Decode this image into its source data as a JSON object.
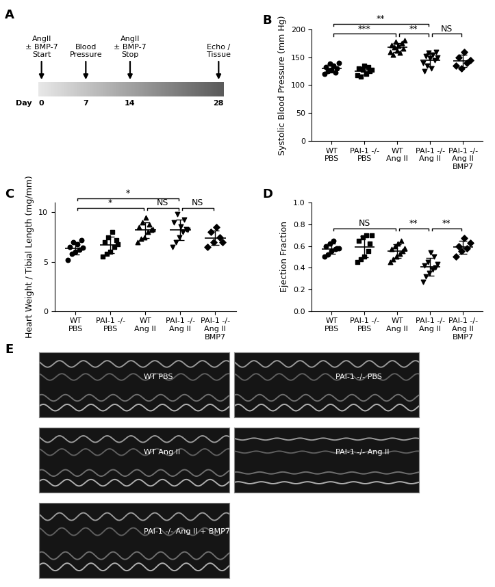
{
  "timeline": {
    "panel": "A",
    "axis_label": "Day",
    "events": [
      {
        "day": 0,
        "text": "AngII\n± BMP-7\nStart"
      },
      {
        "day": 7,
        "text": "Blood\nPressure"
      },
      {
        "day": 14,
        "text": "AngII\n± BMP-7\nStop"
      },
      {
        "day": 28,
        "text": "Echo /\nTissue"
      }
    ]
  },
  "chart_data": [
    {
      "panel": "B",
      "type": "scatter",
      "color": "black",
      "y_label": "Systolic Blood Pressure (mm Hg)",
      "categories": [
        "WT\nPBS",
        "PAI-1 -/-\nPBS",
        "WT\nAng II",
        "PAI-1 -/-\nAng II",
        "PAI-1 -/-\nAng II\nBMP7"
      ],
      "groups": [
        {
          "marker": "circle",
          "values": [
            120,
            132,
            125,
            138,
            128,
            135,
            122,
            130,
            140
          ]
        },
        {
          "marker": "square",
          "values": [
            118,
            130,
            115,
            127,
            135,
            120,
            132,
            125,
            128
          ]
        },
        {
          "marker": "triangle_up",
          "values": [
            160,
            172,
            155,
            168,
            178,
            162,
            170,
            158,
            175,
            165,
            180
          ]
        },
        {
          "marker": "triangle_down",
          "values": [
            140,
            125,
            152,
            135,
            158,
            148,
            130,
            155,
            145,
            160,
            150
          ]
        },
        {
          "marker": "diamond",
          "values": [
            135,
            150,
            130,
            160,
            140,
            145
          ]
        }
      ],
      "ylim": [
        0,
        200
      ],
      "yticks": [
        0,
        50,
        100,
        150,
        200
      ],
      "significance": [
        {
          "from": 0,
          "to": 3,
          "text": "**"
        },
        {
          "from": 0,
          "to": 2,
          "text": "***"
        },
        {
          "from": 2,
          "to": 3,
          "text": "**"
        },
        {
          "from": 3,
          "to": 4,
          "text": "NS"
        }
      ]
    },
    {
      "panel": "C",
      "type": "scatter",
      "color": "black",
      "y_label": "Heart Weight / Tibial Length (mg/mm)",
      "categories": [
        "WT\nPBS",
        "PAI-1 -/-\nPBS",
        "WT\nAng II",
        "PAI-1 -/-\nAng II",
        "PAI-1 -/-\nAng II\nBMP7"
      ],
      "groups": [
        {
          "marker": "circle",
          "values": [
            5.2,
            6.5,
            5.8,
            7.0,
            6.0,
            6.8,
            6.2,
            7.2,
            6.4
          ]
        },
        {
          "marker": "square",
          "values": [
            5.5,
            7.0,
            5.8,
            7.5,
            6.0,
            8.0,
            6.5,
            7.2,
            6.8
          ]
        },
        {
          "marker": "triangle_up",
          "values": [
            7.0,
            8.5,
            7.3,
            9.0,
            7.5,
            9.5,
            8.0,
            8.8,
            8.2,
            8.3
          ]
        },
        {
          "marker": "triangle_down",
          "values": [
            6.5,
            9.0,
            7.0,
            9.8,
            7.5,
            8.6,
            8.0,
            9.3,
            8.3,
            8.2
          ]
        },
        {
          "marker": "diamond",
          "values": [
            6.5,
            8.0,
            7.0,
            8.5,
            7.5,
            7.0
          ]
        }
      ],
      "ylim": [
        0,
        11
      ],
      "yticks": [
        0,
        5,
        10
      ],
      "significance": [
        {
          "from": 0,
          "to": 3,
          "text": "*"
        },
        {
          "from": 0,
          "to": 2,
          "text": "*"
        },
        {
          "from": 2,
          "to": 3,
          "text": "NS"
        },
        {
          "from": 3,
          "to": 4,
          "text": "NS"
        }
      ]
    },
    {
      "panel": "D",
      "type": "scatter",
      "color": "black",
      "y_label": "Ejection Fraction",
      "categories": [
        "WT\nPBS",
        "PAI-1 -/-\nPBS",
        "WT\nAng II",
        "PAI-1 -/-\nAng II",
        "PAI-1 -/-\nAng II\nBMP7"
      ],
      "groups": [
        {
          "marker": "circle",
          "values": [
            0.5,
            0.6,
            0.52,
            0.62,
            0.55,
            0.65,
            0.57,
            0.58,
            0.58
          ]
        },
        {
          "marker": "square",
          "values": [
            0.45,
            0.65,
            0.48,
            0.68,
            0.5,
            0.7,
            0.55,
            0.62,
            0.7
          ]
        },
        {
          "marker": "triangle_up",
          "values": [
            0.45,
            0.57,
            0.48,
            0.6,
            0.5,
            0.62,
            0.53,
            0.65,
            0.55,
            0.58
          ]
        },
        {
          "marker": "triangle_down",
          "values": [
            0.27,
            0.42,
            0.32,
            0.45,
            0.35,
            0.54,
            0.38,
            0.5,
            0.4,
            0.43
          ]
        },
        {
          "marker": "diamond",
          "values": [
            0.5,
            0.6,
            0.55,
            0.67,
            0.58,
            0.63
          ]
        }
      ],
      "ylim": [
        0,
        1.0
      ],
      "yticks": [
        {
          "value": 0,
          "label": "0.0"
        },
        0.2,
        0.4,
        0.6,
        0.8,
        {
          "value": 1,
          "label": "1.0"
        }
      ],
      "significance": [
        {
          "from": 0,
          "to": 2,
          "text": "NS"
        },
        {
          "from": 2,
          "to": 3,
          "text": "**"
        },
        {
          "from": 3,
          "to": 4,
          "text": "**"
        }
      ]
    }
  ],
  "echo": {
    "panel": "E",
    "images": [
      "WT PBS",
      "PAI-1 -/- PBS",
      "WT Ang II",
      "PAI-1 -/- Ang II",
      "PAI-1 -/- Ang II + BMP7"
    ]
  }
}
